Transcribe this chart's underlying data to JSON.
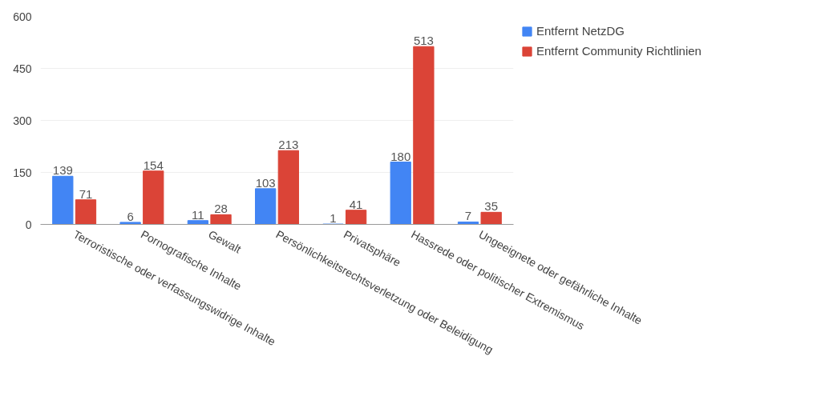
{
  "chart_data": {
    "type": "bar",
    "categories": [
      "Terroristische oder verfassungswidrige Inhalte",
      "Pornografische Inhalte",
      "Gewalt",
      "Persönlichkeitsrechtsverletzung oder Beleidigung",
      "Privatsphäre",
      "Hassrede oder politischer Extremismus",
      "Ungeeignete oder gefährliche Inhalte"
    ],
    "series": [
      {
        "name": "Entfernt NetzDG",
        "color": "#4285f4",
        "values": [
          139,
          6,
          11,
          103,
          1,
          180,
          7
        ]
      },
      {
        "name": "Entfernt Community Richtlinien",
        "color": "#db4437",
        "values": [
          71,
          154,
          28,
          213,
          41,
          513,
          35
        ]
      }
    ],
    "ylim": [
      0,
      600
    ],
    "yticks": [
      0,
      150,
      300,
      450,
      600
    ],
    "grid": "y",
    "legend": "top right",
    "data_labels": true
  }
}
